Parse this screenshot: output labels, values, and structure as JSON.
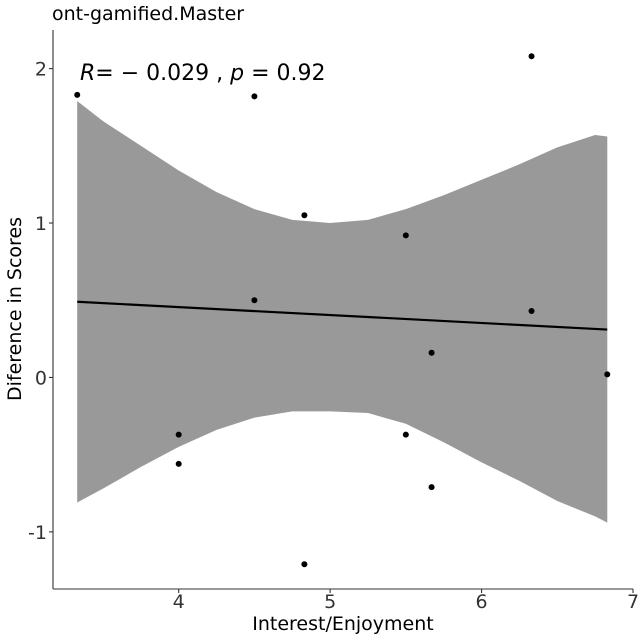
{
  "chart_data": {
    "type": "scatter",
    "title": "ont-gamified.Master",
    "xlabel": "Interest/Enjoyment",
    "ylabel": "Diference in Scores",
    "xlim": [
      3.17,
      7.0
    ],
    "ylim": [
      -1.37,
      2.25
    ],
    "xticks": [
      4,
      5,
      6,
      7
    ],
    "yticks": [
      -1,
      0,
      1,
      2
    ],
    "grid": false,
    "points": [
      {
        "x": 3.33,
        "y": 1.83
      },
      {
        "x": 4.0,
        "y": -0.37
      },
      {
        "x": 4.0,
        "y": -0.56
      },
      {
        "x": 4.5,
        "y": 1.82
      },
      {
        "x": 4.5,
        "y": 0.5
      },
      {
        "x": 4.83,
        "y": 1.05
      },
      {
        "x": 4.83,
        "y": -1.21
      },
      {
        "x": 5.5,
        "y": 0.92
      },
      {
        "x": 5.5,
        "y": -0.37
      },
      {
        "x": 5.67,
        "y": 0.16
      },
      {
        "x": 5.67,
        "y": -0.71
      },
      {
        "x": 6.33,
        "y": 2.08
      },
      {
        "x": 6.33,
        "y": 0.43
      },
      {
        "x": 6.83,
        "y": 0.02
      }
    ],
    "regression": {
      "x": [
        3.33,
        6.83
      ],
      "y": [
        0.49,
        0.31
      ]
    },
    "confidence_band": {
      "x": [
        3.33,
        3.5,
        3.75,
        4.0,
        4.25,
        4.5,
        4.75,
        5.0,
        5.25,
        5.5,
        5.75,
        6.0,
        6.25,
        6.5,
        6.75,
        6.83
      ],
      "upper": [
        1.79,
        1.66,
        1.5,
        1.34,
        1.2,
        1.09,
        1.02,
        1.0,
        1.02,
        1.09,
        1.18,
        1.28,
        1.38,
        1.49,
        1.57,
        1.56
      ],
      "lower": [
        -0.81,
        -0.72,
        -0.58,
        -0.45,
        -0.34,
        -0.26,
        -0.22,
        -0.22,
        -0.23,
        -0.3,
        -0.42,
        -0.55,
        -0.67,
        -0.8,
        -0.9,
        -0.94
      ]
    },
    "annotation": {
      "r_symbol": "R",
      "r_value": "= − 0.029 , ",
      "p_symbol": "p",
      "p_value": " = 0.92"
    },
    "colors": {
      "points": "#000000",
      "line": "#000000",
      "band": "#999999",
      "axis": "#333333"
    }
  }
}
